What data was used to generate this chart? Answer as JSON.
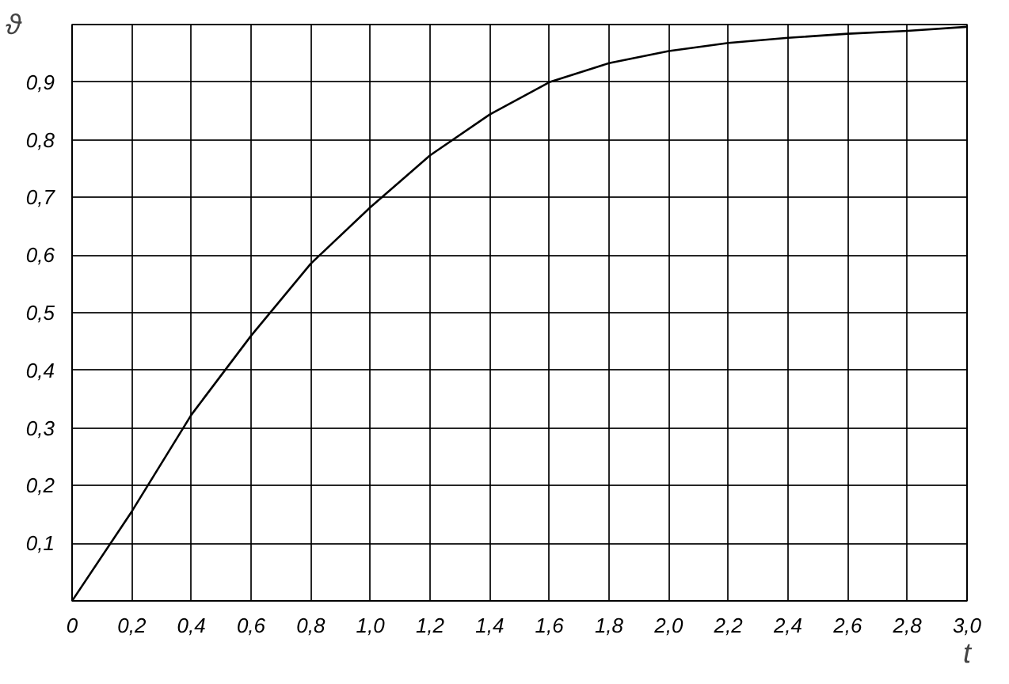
{
  "chart_data": {
    "type": "line",
    "xlabel": "t",
    "ylabel": "ϑ",
    "x": [
      0,
      0.2,
      0.4,
      0.6,
      0.8,
      1.0,
      1.2,
      1.4,
      1.6,
      1.8,
      2.0,
      2.2,
      2.4,
      2.6,
      2.8,
      3.0
    ],
    "series": [
      {
        "color": "#000000",
        "values": [
          0,
          0.155,
          0.323,
          0.46,
          0.585,
          0.683,
          0.773,
          0.844,
          0.9,
          0.933,
          0.954,
          0.968,
          0.977,
          0.984,
          0.989,
          0.996
        ]
      }
    ],
    "xlim": [
      0,
      3.0
    ],
    "ylim": [
      0,
      1.0
    ],
    "xticks": [
      {
        "value": 0,
        "label": "0"
      },
      {
        "value": 0.2,
        "label": "0,2"
      },
      {
        "value": 0.4,
        "label": "0,4"
      },
      {
        "value": 0.6,
        "label": "0,6"
      },
      {
        "value": 0.8,
        "label": "0,8"
      },
      {
        "value": 1.0,
        "label": "1,0"
      },
      {
        "value": 1.2,
        "label": "1,2"
      },
      {
        "value": 1.4,
        "label": "1,4"
      },
      {
        "value": 1.6,
        "label": "1,6"
      },
      {
        "value": 1.8,
        "label": "1,8"
      },
      {
        "value": 2.0,
        "label": "2,0"
      },
      {
        "value": 2.2,
        "label": "2,2"
      },
      {
        "value": 2.4,
        "label": "2,4"
      },
      {
        "value": 2.6,
        "label": "2,6"
      },
      {
        "value": 2.8,
        "label": "2,8"
      },
      {
        "value": 3.0,
        "label": "3,0"
      }
    ],
    "yticks": [
      {
        "value": 0,
        "label": null
      },
      {
        "value": 0.1,
        "label": "0,1"
      },
      {
        "value": 0.2,
        "label": "0,2"
      },
      {
        "value": 0.3,
        "label": "0,3"
      },
      {
        "value": 0.4,
        "label": "0,4"
      },
      {
        "value": 0.5,
        "label": "0,5"
      },
      {
        "value": 0.6,
        "label": "0,6"
      },
      {
        "value": 0.7,
        "label": "0,7"
      },
      {
        "value": 0.8,
        "label": "0,8"
      },
      {
        "value": 0.9,
        "label": "0,9"
      },
      {
        "value": 1.0,
        "label": null
      }
    ],
    "grid": true,
    "marker": "none",
    "line_style": "solid"
  }
}
